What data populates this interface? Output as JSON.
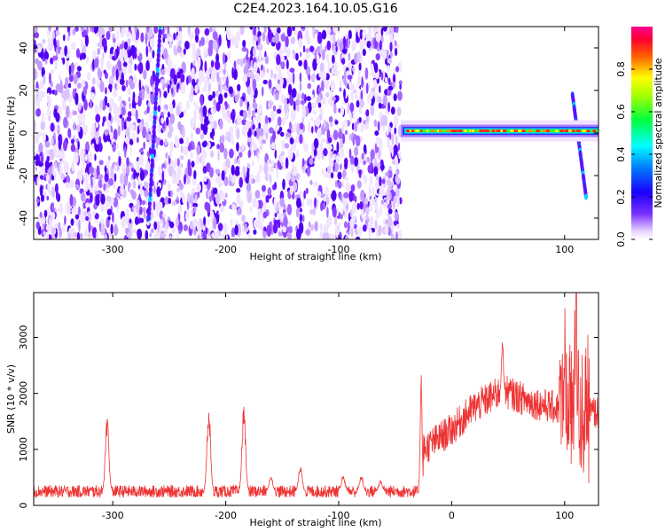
{
  "title": "C2E4.2023.164.10.05.G16",
  "chart_data": [
    {
      "type": "heatmap",
      "xlabel": "Height of straight line (km)",
      "ylabel": "Frequency (Hz)",
      "xlim": [
        -370,
        130
      ],
      "ylim": [
        -50,
        50
      ],
      "xticks": [
        -300,
        -200,
        -100,
        0,
        100
      ],
      "yticks": [
        -40,
        -20,
        0,
        20,
        40
      ],
      "noise_region_x": [
        -370,
        -45
      ],
      "signal_region_x": [
        -45,
        130
      ],
      "signal_center_frequency": 1,
      "features": [
        {
          "x": [
            -268,
            -258
          ],
          "y": [
            -40,
            50
          ]
        },
        {
          "x": [
            107,
            119
          ],
          "y": [
            18,
            -30
          ]
        }
      ],
      "colorbar": {
        "label": "Normalized spectral amplitude",
        "range": [
          0.0,
          1.0
        ],
        "ticks": [
          0.0,
          0.2,
          0.4,
          0.6,
          0.8
        ],
        "colors": [
          "#ffffff",
          "#5a00ff",
          "#0000ff",
          "#00ffff",
          "#00ff00",
          "#ffff00",
          "#ff0000",
          "#ff00aa"
        ]
      }
    },
    {
      "type": "line",
      "xlabel": "Height of straight line (km)",
      "ylabel": "SNR (10 * v/v)",
      "xlim": [
        -370,
        130
      ],
      "ylim": [
        0,
        3800
      ],
      "xticks": [
        -300,
        -200,
        -100,
        0,
        100
      ],
      "yticks": [
        0,
        1000,
        2000,
        3000
      ],
      "color": "#ee3333",
      "baseline_level": 250,
      "peaks": [
        {
          "x": -305,
          "y": 1600
        },
        {
          "x": -215,
          "y": 1800
        },
        {
          "x": -184,
          "y": 1850
        },
        {
          "x": -160,
          "y": 550
        },
        {
          "x": -134,
          "y": 750
        },
        {
          "x": -96,
          "y": 550
        },
        {
          "x": -80,
          "y": 550
        },
        {
          "x": -63,
          "y": 450
        },
        {
          "x": -27,
          "y": 2450
        },
        {
          "x": 45,
          "y": 3000
        },
        {
          "x": 100,
          "y": 2800
        },
        {
          "x": 110,
          "y": 3850
        }
      ],
      "envelope": [
        {
          "x": -25,
          "y": 1000
        },
        {
          "x": 0,
          "y": 1350
        },
        {
          "x": 20,
          "y": 1750
        },
        {
          "x": 45,
          "y": 2050
        },
        {
          "x": 70,
          "y": 1850
        },
        {
          "x": 100,
          "y": 1700
        },
        {
          "x": 130,
          "y": 1650
        }
      ]
    }
  ]
}
